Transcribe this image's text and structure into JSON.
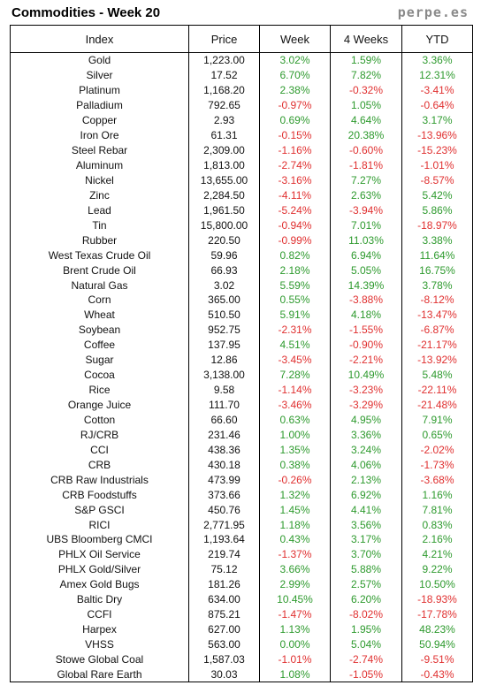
{
  "header": {
    "title": "Commodities - Week 20",
    "brand": "perpe.es"
  },
  "colors": {
    "positive": "#2e9a2e",
    "negative": "#e03030"
  },
  "columns": [
    "Index",
    "Price",
    "Week",
    "4 Weeks",
    "YTD"
  ],
  "rows": [
    [
      "Gold",
      "1,223.00",
      "3.02%",
      "1.59%",
      "3.36%"
    ],
    [
      "Silver",
      "17.52",
      "6.70%",
      "7.82%",
      "12.31%"
    ],
    [
      "Platinum",
      "1,168.20",
      "2.38%",
      "-0.32%",
      "-3.41%"
    ],
    [
      "Palladium",
      "792.65",
      "-0.97%",
      "1.05%",
      "-0.64%"
    ],
    [
      "Copper",
      "2.93",
      "0.69%",
      "4.64%",
      "3.17%"
    ],
    [
      "Iron Ore",
      "61.31",
      "-0.15%",
      "20.38%",
      "-13.96%"
    ],
    [
      "Steel Rebar",
      "2,309.00",
      "-1.16%",
      "-0.60%",
      "-15.23%"
    ],
    [
      "Aluminum",
      "1,813.00",
      "-2.74%",
      "-1.81%",
      "-1.01%"
    ],
    [
      "Nickel",
      "13,655.00",
      "-3.16%",
      "7.27%",
      "-8.57%"
    ],
    [
      "Zinc",
      "2,284.50",
      "-4.11%",
      "2.63%",
      "5.42%"
    ],
    [
      "Lead",
      "1,961.50",
      "-5.24%",
      "-3.94%",
      "5.86%"
    ],
    [
      "Tin",
      "15,800.00",
      "-0.94%",
      "7.01%",
      "-18.97%"
    ],
    [
      "Rubber",
      "220.50",
      "-0.99%",
      "11.03%",
      "3.38%"
    ],
    [
      "West Texas Crude Oil",
      "59.96",
      "0.82%",
      "6.94%",
      "11.64%"
    ],
    [
      "Brent Crude Oil",
      "66.93",
      "2.18%",
      "5.05%",
      "16.75%"
    ],
    [
      "Natural Gas",
      "3.02",
      "5.59%",
      "14.39%",
      "3.78%"
    ],
    [
      "Corn",
      "365.00",
      "0.55%",
      "-3.88%",
      "-8.12%"
    ],
    [
      "Wheat",
      "510.50",
      "5.91%",
      "4.18%",
      "-13.47%"
    ],
    [
      "Soybean",
      "952.75",
      "-2.31%",
      "-1.55%",
      "-6.87%"
    ],
    [
      "Coffee",
      "137.95",
      "4.51%",
      "-0.90%",
      "-21.17%"
    ],
    [
      "Sugar",
      "12.86",
      "-3.45%",
      "-2.21%",
      "-13.92%"
    ],
    [
      "Cocoa",
      "3,138.00",
      "7.28%",
      "10.49%",
      "5.48%"
    ],
    [
      "Rice",
      "9.58",
      "-1.14%",
      "-3.23%",
      "-22.11%"
    ],
    [
      "Orange Juice",
      "111.70",
      "-3.46%",
      "-3.29%",
      "-21.48%"
    ],
    [
      "Cotton",
      "66.60",
      "0.63%",
      "4.95%",
      "7.91%"
    ],
    [
      "RJ/CRB",
      "231.46",
      "1.00%",
      "3.36%",
      "0.65%"
    ],
    [
      "CCI",
      "438.36",
      "1.35%",
      "3.24%",
      "-2.02%"
    ],
    [
      "CRB",
      "430.18",
      "0.38%",
      "4.06%",
      "-1.73%"
    ],
    [
      "CRB Raw Industrials",
      "473.99",
      "-0.26%",
      "2.13%",
      "-3.68%"
    ],
    [
      "CRB Foodstuffs",
      "373.66",
      "1.32%",
      "6.92%",
      "1.16%"
    ],
    [
      "S&P GSCI",
      "450.76",
      "1.45%",
      "4.41%",
      "7.81%"
    ],
    [
      "RICI",
      "2,771.95",
      "1.18%",
      "3.56%",
      "0.83%"
    ],
    [
      "UBS Bloomberg CMCI",
      "1,193.64",
      "0.43%",
      "3.17%",
      "2.16%"
    ],
    [
      "PHLX Oil Service",
      "219.74",
      "-1.37%",
      "3.70%",
      "4.21%"
    ],
    [
      "PHLX Gold/Silver",
      "75.12",
      "3.66%",
      "5.88%",
      "9.22%"
    ],
    [
      "Amex Gold Bugs",
      "181.26",
      "2.99%",
      "2.57%",
      "10.50%"
    ],
    [
      "Baltic Dry",
      "634.00",
      "10.45%",
      "6.20%",
      "-18.93%"
    ],
    [
      "CCFI",
      "875.21",
      "-1.47%",
      "-8.02%",
      "-17.78%"
    ],
    [
      "Harpex",
      "627.00",
      "1.13%",
      "1.95%",
      "48.23%"
    ],
    [
      "VHSS",
      "563.00",
      "0.00%",
      "5.04%",
      "50.94%"
    ],
    [
      "Stowe Global Coal",
      "1,587.03",
      "-1.01%",
      "-2.74%",
      "-9.51%"
    ],
    [
      "Global Rare Earth",
      "30.03",
      "1.08%",
      "-1.05%",
      "-0.43%"
    ]
  ]
}
